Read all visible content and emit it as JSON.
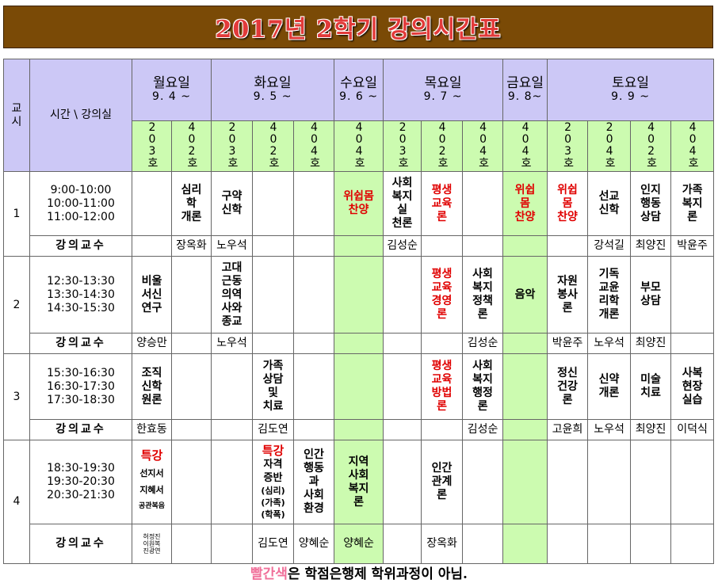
{
  "title": "2017년 2학기 강의시간표",
  "header": {
    "col0": "교\n시",
    "col1": "시간 \\ 강의실",
    "days": [
      {
        "name": "월요일",
        "date": "9. 4 ~"
      },
      {
        "name": "화요일",
        "date": "9. 5 ~"
      },
      {
        "name": "수요일",
        "date": "9. 6 ~"
      },
      {
        "name": "목요일",
        "date": "9. 7 ~"
      },
      {
        "name": "금요일",
        "date": "9. 8~"
      },
      {
        "name": "토요일",
        "date": "9. 9 ~"
      }
    ],
    "rooms": [
      "203호",
      "402호",
      "203호",
      "402호",
      "404호",
      "404호",
      "203호",
      "402호",
      "404호",
      "404호",
      "203호",
      "204호",
      "402호",
      "404호"
    ]
  },
  "professor_label": "강의교수",
  "periods": [
    {
      "number": "1",
      "times": [
        "9:00-10:00",
        "10:00-11:00",
        "11:00-12:00"
      ],
      "subjects": [
        "",
        "심리\n학\n개론",
        "구약\n신학",
        "",
        "",
        "위쉽몸\n찬양",
        "사회\n복지\n실\n천론",
        "평생\n교육\n론",
        "",
        "위쉽\n몸\n찬양",
        "위쉽\n몸\n찬양",
        "선교\n신학",
        "인지\n행동\n상담",
        "가족\n복지\n론"
      ],
      "professors": [
        "",
        "장옥화",
        "노우석",
        "",
        "",
        "",
        "김성순",
        "",
        "",
        "",
        "",
        "강석길",
        "최양진",
        "박윤주"
      ]
    },
    {
      "number": "2",
      "times": [
        "12:30-13:30",
        "13:30-14:30",
        "14:30-15:30"
      ],
      "subjects": [
        "비울\n서신\n연구",
        "",
        "고대\n근동\n의역\n사와\n종교",
        "",
        "",
        "",
        "",
        "평생\n교육\n경영\n론",
        "사회\n복지\n정책\n론",
        "음악",
        "자원\n봉사\n론",
        "기독\n교윤\n리학\n개론",
        "부모\n상담",
        ""
      ],
      "professors": [
        "양승만",
        "",
        "노우석",
        "",
        "",
        "",
        "",
        "",
        "김성순",
        "",
        "박윤주",
        "노우석",
        "최양진",
        ""
      ]
    },
    {
      "number": "3",
      "times": [
        "15:30-16:30",
        "16:30-17:30",
        "17:30-18:30"
      ],
      "subjects": [
        "조직\n신학\n원론",
        "",
        "",
        "가족\n상담\n및\n치료",
        "",
        "",
        "",
        "평생\n교육\n방법\n론",
        "사회\n복지\n행정\n론",
        "",
        "정신\n건강\n론",
        "신약\n개론",
        "미술\n치료",
        "사복\n현장\n실습"
      ],
      "professors": [
        "한효동",
        "",
        "",
        "김도연",
        "",
        "",
        "",
        "",
        "김성순",
        "",
        "고윤희",
        "노우석",
        "최양진",
        "이덕식"
      ]
    },
    {
      "number": "4",
      "times": [
        "18:30-19:30",
        "19:30-20:30",
        "20:30-21:30"
      ],
      "mon203": {
        "special": "특강",
        "lines": [
          "선지서",
          "지혜서",
          "공관복음"
        ]
      },
      "tue402": {
        "special": "특강",
        "lines": [
          "자격",
          "증반",
          "(심리)",
          "(가족)",
          "(학폭)"
        ]
      },
      "subjects": [
        "",
        "",
        "",
        "",
        "인간\n행동\n과\n사회\n환경",
        "지역\n사회\n복지\n론",
        "",
        "인간\n관계\n론",
        "",
        "",
        "",
        "",
        "",
        ""
      ],
      "professors": [
        "",
        "",
        "",
        "김도연",
        "양혜순",
        "양혜순",
        "",
        "장옥화",
        "",
        "",
        "",
        "",
        "",
        ""
      ],
      "mon203_profs": [
        "허정진",
        "이원복",
        "진광연"
      ]
    }
  ],
  "footer": {
    "highlight": "빨간색",
    "rest": "은 학점은행제 학위과정이 아님."
  }
}
